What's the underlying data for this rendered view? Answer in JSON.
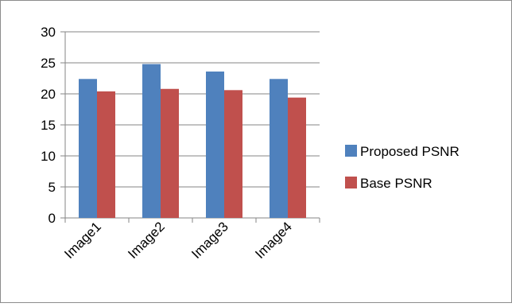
{
  "chart_data": {
    "type": "bar",
    "title": "",
    "xlabel": "",
    "ylabel": "",
    "categories": [
      "Image1",
      "Image2",
      "Image3",
      "Image4"
    ],
    "series": [
      {
        "name": "Proposed PSNR",
        "values": [
          22.4,
          24.8,
          23.6,
          22.4
        ],
        "color": "#4F81BD"
      },
      {
        "name": "Base PSNR",
        "values": [
          20.4,
          20.8,
          20.6,
          19.4
        ],
        "color": "#C0504D"
      }
    ],
    "ylim": [
      0,
      30
    ],
    "yticks": [
      0,
      5,
      10,
      15,
      20,
      25,
      30
    ],
    "grid": true,
    "legend_position": "right"
  }
}
